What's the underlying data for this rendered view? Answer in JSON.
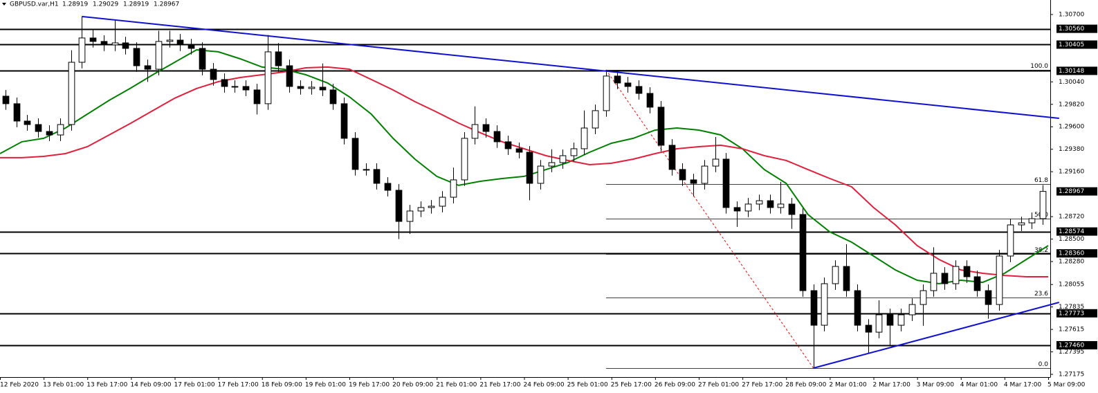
{
  "chart_data": {
    "type": "candlestick",
    "symbol": "GBPUSD.var,H1",
    "header_ohlc": [
      1.28919,
      1.29029,
      1.28919,
      1.28967
    ],
    "x_labels": [
      "12 Feb 2020",
      "13 Feb 01:00",
      "13 Feb 17:00",
      "14 Feb 09:00",
      "17 Feb 01:00",
      "17 Feb 17:00",
      "18 Feb 09:00",
      "19 Feb 01:00",
      "19 Feb 17:00",
      "20 Feb 09:00",
      "21 Feb 01:00",
      "21 Feb 17:00",
      "24 Feb 09:00",
      "25 Feb 01:00",
      "25 Feb 17:00",
      "26 Feb 09:00",
      "27 Feb 01:00",
      "27 Feb 17:00",
      "28 Feb 09:00",
      "2 Mar 01:00",
      "2 Mar 17:00",
      "3 Mar 09:00",
      "4 Mar 01:00",
      "4 Mar 17:00",
      "5 Mar 09:00"
    ],
    "open": [
      1.299,
      1.29826,
      1.29656,
      1.29622,
      1.29554,
      1.2952,
      1.29622,
      1.30232,
      1.3047,
      1.30436,
      1.30402,
      1.30422,
      1.30368,
      1.30198,
      1.30164,
      1.30436,
      1.30449,
      1.30402,
      1.30368,
      1.30164,
      1.30063,
      1.29995,
      1.29995,
      1.29961,
      1.29826,
      1.30334,
      1.30198,
      1.29995,
      1.29975,
      1.29988,
      1.29961,
      1.29826,
      1.29487,
      1.29182,
      1.29182,
      1.29046,
      1.28978,
      1.28673,
      1.28775,
      1.28809,
      1.28822,
      1.2891,
      1.2908,
      1.29487,
      1.29622,
      1.29554,
      1.29453,
      1.29385,
      1.29351,
      1.29046,
      1.29215,
      1.29249,
      1.29317,
      1.29385,
      1.29588,
      1.29758,
      1.30097,
      1.30029,
      1.29995,
      1.29927,
      1.29792,
      1.29419,
      1.29182,
      1.2908,
      1.29046,
      1.29215,
      1.29283,
      1.28809,
      1.28775,
      1.28843,
      1.28876,
      1.28809,
      1.28843,
      1.28741,
      1.27995,
      1.27656,
      1.28063,
      1.28232,
      1.27995,
      1.27656,
      1.27588,
      1.27758,
      1.27656,
      1.27758,
      1.27859,
      1.27995,
      1.28165,
      1.28063,
      1.28232,
      1.28131,
      1.27995,
      1.27859,
      1.28334,
      1.28639,
      1.28659,
      1.287
    ],
    "high": [
      1.2996,
      1.29886,
      1.29716,
      1.29682,
      1.29614,
      1.29682,
      1.3035,
      1.3068,
      1.3056,
      1.30496,
      1.3064,
      1.30482,
      1.30428,
      1.30258,
      1.3054,
      1.3054,
      1.30509,
      1.30462,
      1.30428,
      1.30224,
      1.30123,
      1.30055,
      1.30055,
      1.30021,
      1.305,
      1.3042,
      1.30258,
      1.30055,
      1.30048,
      1.3022,
      1.30021,
      1.29886,
      1.29547,
      1.29242,
      1.29242,
      1.29106,
      1.29038,
      1.28835,
      1.28869,
      1.28882,
      1.2897,
      1.292,
      1.29547,
      1.298,
      1.29682,
      1.29614,
      1.29513,
      1.29445,
      1.29411,
      1.29275,
      1.2938,
      1.29377,
      1.29445,
      1.2976,
      1.29818,
      1.30158,
      1.30157,
      1.30089,
      1.30055,
      1.29987,
      1.29852,
      1.29479,
      1.29242,
      1.2914,
      1.29275,
      1.295,
      1.29343,
      1.28869,
      1.28903,
      1.28936,
      1.28936,
      1.2906,
      1.28903,
      1.28801,
      1.28055,
      1.28123,
      1.28292,
      1.2845,
      1.28055,
      1.27716,
      1.279,
      1.27818,
      1.27818,
      1.27919,
      1.28055,
      1.2842,
      1.28225,
      1.28292,
      1.28292,
      1.28191,
      1.28055,
      1.28394,
      1.287,
      1.28719,
      1.2876,
      1.29029
    ],
    "low": [
      1.29766,
      1.29596,
      1.29562,
      1.29494,
      1.2946,
      1.2946,
      1.29562,
      1.30172,
      1.30376,
      1.30342,
      1.30342,
      1.30308,
      1.30138,
      1.3004,
      1.30104,
      1.30376,
      1.30342,
      1.30308,
      1.30104,
      1.30003,
      1.29935,
      1.29935,
      1.29901,
      1.2972,
      1.29766,
      1.30138,
      1.29935,
      1.29915,
      1.29915,
      1.29901,
      1.29766,
      1.29427,
      1.29122,
      1.29122,
      1.28986,
      1.28918,
      1.285,
      1.2855,
      1.28715,
      1.28749,
      1.28762,
      1.2885,
      1.2902,
      1.29427,
      1.29494,
      1.29393,
      1.29325,
      1.29291,
      1.2888,
      1.28986,
      1.29155,
      1.29189,
      1.29257,
      1.29325,
      1.29528,
      1.29698,
      1.29969,
      1.29935,
      1.29867,
      1.29732,
      1.29359,
      1.29122,
      1.2902,
      1.2892,
      1.28986,
      1.29155,
      1.28749,
      1.2862,
      1.28715,
      1.28783,
      1.28749,
      1.28749,
      1.286,
      1.27935,
      1.27236,
      1.27596,
      1.28003,
      1.27935,
      1.27596,
      1.2738,
      1.27528,
      1.2746,
      1.27596,
      1.27698,
      1.2765,
      1.27935,
      1.28003,
      1.28003,
      1.28071,
      1.27935,
      1.2772,
      1.27799,
      1.28274,
      1.28579,
      1.28599,
      1.2864
    ],
    "close": [
      1.29826,
      1.29656,
      1.29622,
      1.29554,
      1.2952,
      1.29622,
      1.30232,
      1.3047,
      1.30436,
      1.30402,
      1.30422,
      1.30368,
      1.30198,
      1.30164,
      1.30436,
      1.30449,
      1.30402,
      1.30368,
      1.30164,
      1.30063,
      1.29995,
      1.29995,
      1.29961,
      1.29826,
      1.30334,
      1.30198,
      1.29995,
      1.29975,
      1.29988,
      1.29961,
      1.29826,
      1.29487,
      1.29182,
      1.29182,
      1.29046,
      1.28978,
      1.28673,
      1.28775,
      1.28809,
      1.28822,
      1.2891,
      1.2908,
      1.29487,
      1.29622,
      1.29554,
      1.29453,
      1.29385,
      1.29351,
      1.29046,
      1.29215,
      1.29249,
      1.29317,
      1.29385,
      1.29588,
      1.29758,
      1.30097,
      1.30029,
      1.29995,
      1.29927,
      1.29792,
      1.29419,
      1.29182,
      1.2908,
      1.29046,
      1.29215,
      1.29283,
      1.28809,
      1.28775,
      1.28843,
      1.28876,
      1.28809,
      1.28843,
      1.28741,
      1.27995,
      1.27656,
      1.28063,
      1.28232,
      1.27995,
      1.27656,
      1.27588,
      1.27758,
      1.27656,
      1.27758,
      1.27859,
      1.27995,
      1.28165,
      1.28063,
      1.28232,
      1.28131,
      1.27995,
      1.27859,
      1.28334,
      1.28639,
      1.28659,
      1.287,
      1.28967
    ],
    "moving_averages": [
      {
        "color": "#008000",
        "values": [
          1.29337,
          1.29453,
          1.29487,
          1.29588,
          1.29724,
          1.29859,
          1.29981,
          1.3011,
          1.30232,
          1.30354,
          1.30334,
          1.30266,
          1.30185,
          1.30164,
          1.3011,
          1.30029,
          1.29893,
          1.29724,
          1.29487,
          1.29283,
          1.29114,
          1.29026,
          1.29066,
          1.29093,
          1.29114,
          1.29181,
          1.29249,
          1.29351,
          1.29439,
          1.29487,
          1.29568,
          1.29588,
          1.29568,
          1.2952,
          1.29385,
          1.29181,
          1.29046,
          1.28741,
          1.28571,
          1.2847,
          1.28334,
          1.28198,
          1.28097,
          1.28063,
          1.28097,
          1.28076,
          1.28165,
          1.283,
          1.28436
        ]
      },
      {
        "color": "#e0203c",
        "values": [
          1.29297,
          1.29297,
          1.2931,
          1.29337,
          1.29405,
          1.2952,
          1.29636,
          1.29758,
          1.2988,
          1.29975,
          1.30042,
          1.30083,
          1.3011,
          1.30137,
          1.30178,
          1.30185,
          1.30164,
          1.30063,
          1.29961,
          1.29846,
          1.29744,
          1.29636,
          1.29541,
          1.29453,
          1.29385,
          1.29317,
          1.2927,
          1.29229,
          1.29243,
          1.29283,
          1.29337,
          1.29385,
          1.29405,
          1.29419,
          1.29385,
          1.29317,
          1.2927,
          1.29181,
          1.29093,
          1.29012,
          1.28809,
          1.28639,
          1.28436,
          1.283,
          1.28198,
          1.28165,
          1.28144,
          1.28131,
          1.28131
        ]
      }
    ],
    "trendlines": [
      {
        "color": "#1010d0",
        "x": [
          7,
          96.5
        ],
        "y": [
          1.3068,
          1.29683
        ]
      },
      {
        "color": "#1010d0",
        "x": [
          74,
          96.5
        ],
        "y": [
          1.27236,
          1.2788
        ]
      }
    ],
    "fib": {
      "x_start": 55,
      "x_end": 74,
      "high": 1.30158,
      "low": 1.27236,
      "color": "#ff0000",
      "levels": [
        {
          "value": 100,
          "label": "100.0"
        },
        {
          "value": 61.8,
          "label": "61.8"
        },
        {
          "value": 50,
          "label": "50.0"
        },
        {
          "value": 38.2,
          "label": "38.2"
        },
        {
          "value": 23.6,
          "label": "23.6"
        },
        {
          "value": 0,
          "label": "0.0"
        }
      ]
    },
    "levels": [
      {
        "value": 1.3056,
        "label": "1.30560"
      },
      {
        "value": 1.30405,
        "label": "1.30405"
      },
      {
        "value": 1.30148,
        "label": "1.30148"
      },
      {
        "value": 1.28574,
        "label": "1.28574"
      },
      {
        "value": 1.2836,
        "label": "1.28360"
      },
      {
        "value": 1.27773,
        "label": "1.27773"
      },
      {
        "value": 1.2746,
        "label": "1.27460"
      }
    ],
    "price_label": {
      "value": 1.28967,
      "label": "1.28967"
    },
    "ylim": [
      1.27148,
      1.30842
    ],
    "yticks": [
      {
        "value": 1.307,
        "label": "1.30700"
      },
      {
        "value": 1.3004,
        "label": "1.30040"
      },
      {
        "value": 1.2982,
        "label": "1.29820"
      },
      {
        "value": 1.296,
        "label": "1.29600"
      },
      {
        "value": 1.2938,
        "label": "1.29380"
      },
      {
        "value": 1.2916,
        "label": "1.29160"
      },
      {
        "value": 1.2872,
        "label": "1.28720"
      },
      {
        "value": 1.285,
        "label": "1.28500"
      },
      {
        "value": 1.2828,
        "label": "1.28280"
      },
      {
        "value": 1.28055,
        "label": "1.28055"
      },
      {
        "value": 1.27835,
        "label": "1.27835"
      },
      {
        "value": 1.27615,
        "label": "1.27615"
      },
      {
        "value": 1.27395,
        "label": "1.27395"
      },
      {
        "value": 1.27175,
        "label": "1.27175"
      }
    ]
  }
}
